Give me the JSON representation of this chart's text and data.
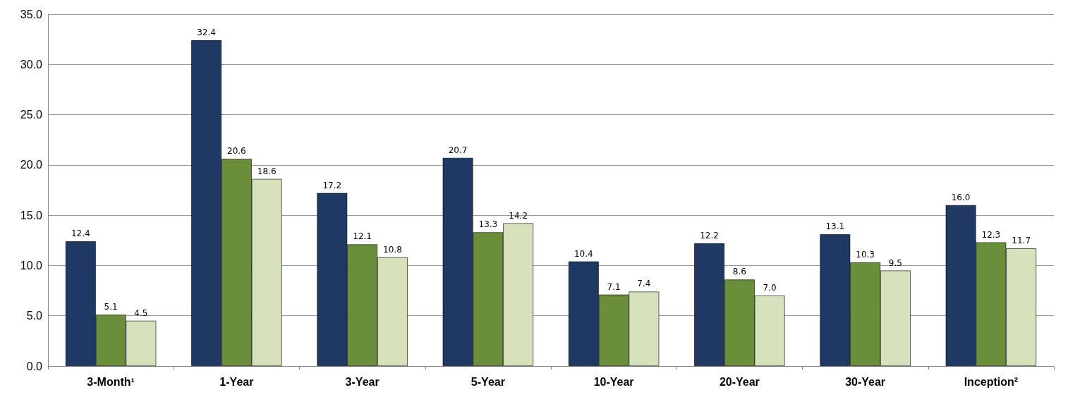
{
  "chart_data": {
    "type": "bar",
    "categories": [
      "3-Month¹",
      "1-Year",
      "3-Year",
      "5-Year",
      "10-Year",
      "20-Year",
      "30-Year",
      "Inception²"
    ],
    "series": [
      {
        "color": "#1f3864",
        "values": [
          12.4,
          32.4,
          17.2,
          20.7,
          10.4,
          12.2,
          13.1,
          16.0
        ],
        "value_labels": [
          "12.4",
          "32.4",
          "17.2",
          "20.7",
          "10.4",
          "12.2",
          "13.1",
          "16.0"
        ]
      },
      {
        "color": "#6b8e3a",
        "values": [
          5.1,
          20.6,
          12.1,
          13.3,
          7.1,
          8.6,
          10.3,
          12.3
        ],
        "value_labels": [
          "5.1",
          "20.6",
          "12.1",
          "13.3",
          "7.1",
          "8.6",
          "10.3",
          "12.3"
        ]
      },
      {
        "color": "#d6e2bb",
        "values": [
          4.5,
          18.6,
          10.8,
          14.2,
          7.4,
          7.0,
          9.5,
          11.7
        ],
        "value_labels": [
          "4.5",
          "18.6",
          "10.8",
          "14.2",
          "7.4",
          "7.0",
          "9.5",
          "11.7"
        ]
      }
    ],
    "ylim": [
      0,
      35
    ],
    "yticks": [
      {
        "value": 0,
        "label": "0.0"
      },
      {
        "value": 5,
        "label": "5.0"
      },
      {
        "value": 10,
        "label": "10.0"
      },
      {
        "value": 15,
        "label": "15.0"
      },
      {
        "value": 20,
        "label": "20.0"
      },
      {
        "value": 25,
        "label": "25.0"
      },
      {
        "value": 30,
        "label": "30.0"
      },
      {
        "value": 35,
        "label": "35.0"
      }
    ],
    "grid": "y"
  }
}
